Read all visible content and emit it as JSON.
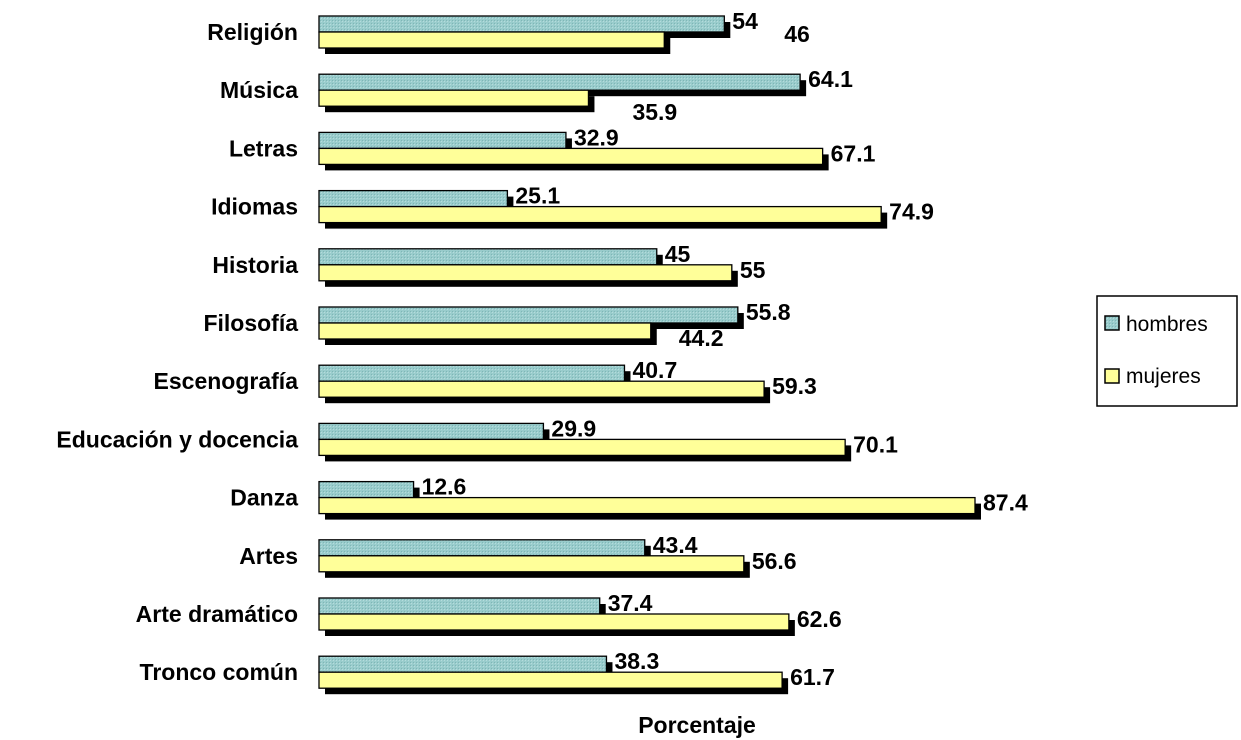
{
  "chart_data": {
    "type": "bar",
    "orientation": "horizontal",
    "categories": [
      "Religión",
      "Música",
      "Letras",
      "Idiomas",
      "Historia",
      "Filosofía",
      "Escenografía",
      "Educación y docencia",
      "Danza",
      "Artes",
      "Arte dramático",
      "Tronco común"
    ],
    "series": [
      {
        "name": "hombres",
        "values": [
          54,
          64.1,
          32.9,
          25.1,
          45,
          55.8,
          40.7,
          29.9,
          12.6,
          43.4,
          37.4,
          38.3
        ],
        "color": "#99cccc"
      },
      {
        "name": "mujeres",
        "values": [
          46,
          35.9,
          67.1,
          74.9,
          55,
          44.2,
          59.3,
          70.1,
          87.4,
          56.6,
          62.6,
          61.7
        ],
        "color": "#ffff99"
      }
    ],
    "value_labels": {
      "hombres": [
        "54",
        "64.1",
        "32.9",
        "25.1",
        "45",
        "55.8",
        "40.7",
        "29.9",
        "12.6",
        "43.4",
        "37.4",
        "38.3"
      ],
      "mujeres": [
        "46",
        "35.9",
        "67.1",
        "74.9",
        "55",
        "44.2",
        "59.3",
        "70.1",
        "87.4",
        "56.6",
        "62.6",
        "61.7"
      ]
    },
    "title": "",
    "xlabel": "Porcentaje",
    "ylabel": "",
    "xlim": [
      0,
      87.4
    ],
    "grid": false,
    "legend": "right"
  }
}
